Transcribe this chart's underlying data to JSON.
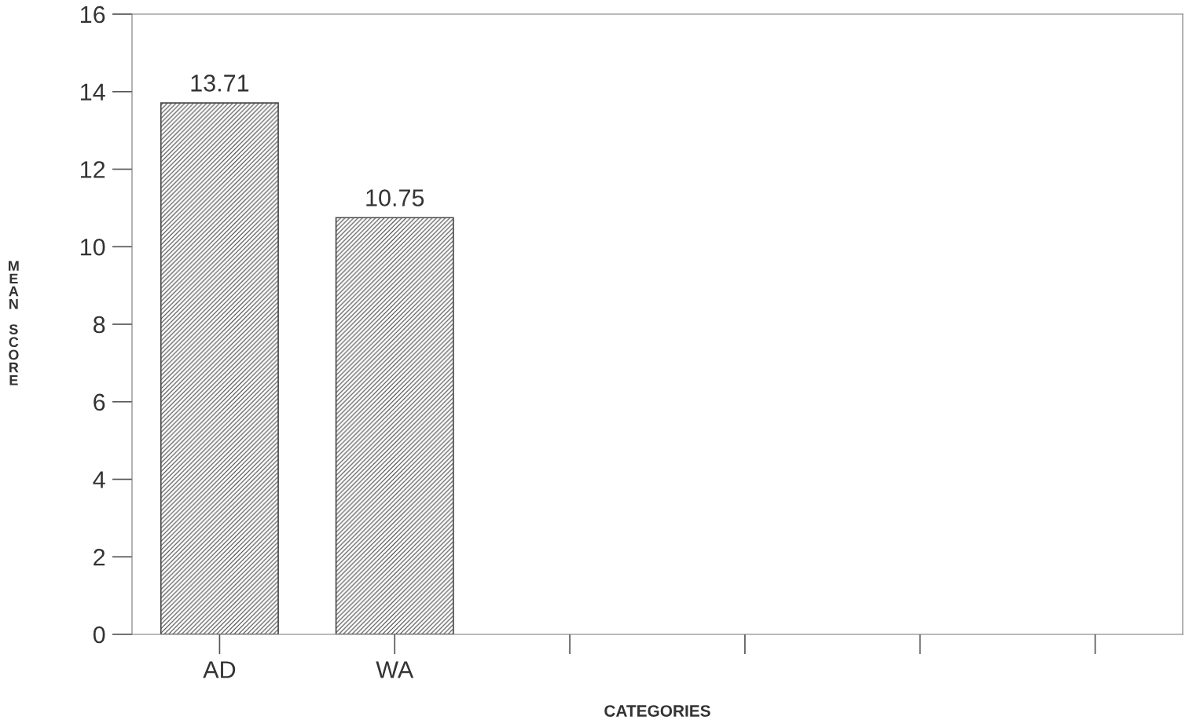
{
  "chart_data": {
    "type": "bar",
    "xlabel": "CATEGORIES",
    "ylabel": "MEAN SCORE",
    "categories": [
      "AD",
      "WA",
      null,
      null,
      null,
      null
    ],
    "values": [
      13.71,
      10.75,
      null,
      null,
      null,
      null
    ],
    "color": "#4a4a4a",
    "ylim": [
      0,
      16
    ],
    "yticks": [
      0,
      2,
      4,
      6,
      8,
      10,
      12,
      14,
      16
    ],
    "data_labels": true,
    "grid": false,
    "legend": false
  }
}
